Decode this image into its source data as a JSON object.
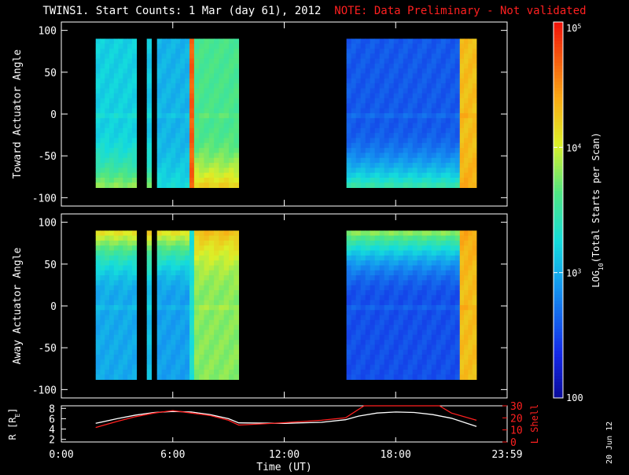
{
  "title": {
    "main": "TWINS1. Start Counts:  1 Mar (day  61), 2012",
    "note": "NOTE: Data Preliminary - Not validated"
  },
  "date_stamp": "20 Jun 12",
  "colors": {
    "background": "#000000",
    "axes": "#ffffff",
    "note": "#ff2020",
    "lshell": "#ff2020"
  },
  "chart_data": [
    {
      "type": "heatmap",
      "ylabel": "Toward Actuator Angle",
      "ylim": [
        -110,
        110
      ],
      "yticks": [
        100,
        50,
        0,
        -50,
        -100
      ],
      "ytick_labels": [
        "100",
        "50",
        "0",
        "-50",
        "-100"
      ],
      "xlim": [
        0,
        24
      ],
      "data_range_deg": [
        -88,
        90
      ],
      "columns": [
        {
          "t0": 1.85,
          "t1": 4.05,
          "level": 3.2,
          "edge": 3.9
        },
        {
          "t0": 4.6,
          "t1": 4.85,
          "level": 3.15,
          "edge": 3.8
        },
        {
          "t0": 5.15,
          "t1": 6.9,
          "level": 3.05,
          "edge": 3.3
        },
        {
          "t0": 6.9,
          "t1": 7.15,
          "level": 4.7,
          "edge": 4.7
        },
        {
          "t0": 7.15,
          "t1": 9.55,
          "level": 3.6,
          "edge": 4.3
        },
        {
          "t0": 15.35,
          "t1": 21.45,
          "level": 2.6,
          "edge": 3.6
        },
        {
          "t0": 21.45,
          "t1": 22.35,
          "level": 4.3,
          "edge": 4.4
        }
      ]
    },
    {
      "type": "heatmap",
      "ylabel": "Away Actuator Angle",
      "ylim": [
        -110,
        110
      ],
      "yticks": [
        100,
        50,
        0,
        -50,
        -100
      ],
      "ytick_labels": [
        "100",
        "50",
        "0",
        "-50",
        "-100"
      ],
      "xlim": [
        0,
        24
      ],
      "data_range_deg": [
        -88,
        90
      ],
      "columns": [
        {
          "t0": 1.85,
          "t1": 4.05,
          "level": 3.0,
          "edge": 4.1
        },
        {
          "t0": 4.6,
          "t1": 4.85,
          "level": 3.1,
          "edge": 4.2
        },
        {
          "t0": 5.15,
          "t1": 6.9,
          "level": 2.95,
          "edge": 4.1
        },
        {
          "t0": 6.9,
          "t1": 7.15,
          "level": 3.3,
          "edge": 3.3
        },
        {
          "t0": 7.15,
          "t1": 9.55,
          "level": 3.8,
          "edge": 4.3
        },
        {
          "t0": 15.35,
          "t1": 21.45,
          "level": 2.55,
          "edge": 3.8
        },
        {
          "t0": 21.45,
          "t1": 22.35,
          "level": 4.3,
          "edge": 4.4
        }
      ]
    },
    {
      "type": "line",
      "ylabel_left": "R [R",
      "ylabel_left_sub": "E",
      "ylabel_left_end": "]",
      "ylabel_right": "L Shell",
      "xlabel": "Time (UT)",
      "xlim": [
        0,
        24
      ],
      "xticks": [
        0,
        6,
        12,
        18,
        24
      ],
      "xtick_labels": [
        "0:00",
        "6:00",
        "12:00",
        "18:00",
        "23:59"
      ],
      "ylim_left": [
        1.5,
        8.5
      ],
      "yticks_left": [
        2,
        4,
        6,
        8
      ],
      "ytick_labels_left": [
        "2",
        "4",
        "6",
        "8"
      ],
      "ylim_right": [
        0,
        30
      ],
      "yticks_right": [
        0,
        10,
        20,
        30
      ],
      "ytick_labels_right": [
        "0",
        "10",
        "20",
        "30"
      ],
      "series": [
        {
          "color": "#ffffff",
          "axis": "left",
          "x": [
            1.85,
            3,
            4,
            5,
            6,
            7,
            8,
            9,
            9.55,
            12,
            14,
            15.3,
            16,
            17,
            18,
            19,
            20,
            21,
            22.35
          ],
          "y": [
            5.1,
            6.0,
            6.7,
            7.2,
            7.4,
            7.3,
            6.8,
            6.0,
            5.2,
            5.1,
            5.3,
            5.8,
            6.5,
            7.1,
            7.3,
            7.2,
            6.8,
            6.1,
            4.5
          ]
        },
        {
          "color": "#ff2020",
          "axis": "right",
          "x": [
            1.85,
            3,
            4,
            5,
            6,
            7,
            8,
            9,
            9.55,
            12,
            14,
            15.3,
            16.3,
            16.35,
            20.3,
            20.35,
            21,
            22.35
          ],
          "y": [
            12,
            17,
            21,
            24,
            26,
            24,
            22,
            18,
            14,
            16,
            18,
            20,
            30,
            30,
            30,
            30,
            24,
            18
          ]
        }
      ]
    },
    {
      "type": "colorbar",
      "label_prefix": "LOG",
      "label_sub": "10",
      "label_suffix": "(Total Starts per Scan)",
      "range_log": [
        2,
        5
      ],
      "ticks": [
        2,
        3,
        4,
        5
      ],
      "tick_labels": [
        "100",
        "10",
        "10",
        "10"
      ],
      "tick_sups": [
        "",
        "3",
        "4",
        "5"
      ]
    }
  ]
}
